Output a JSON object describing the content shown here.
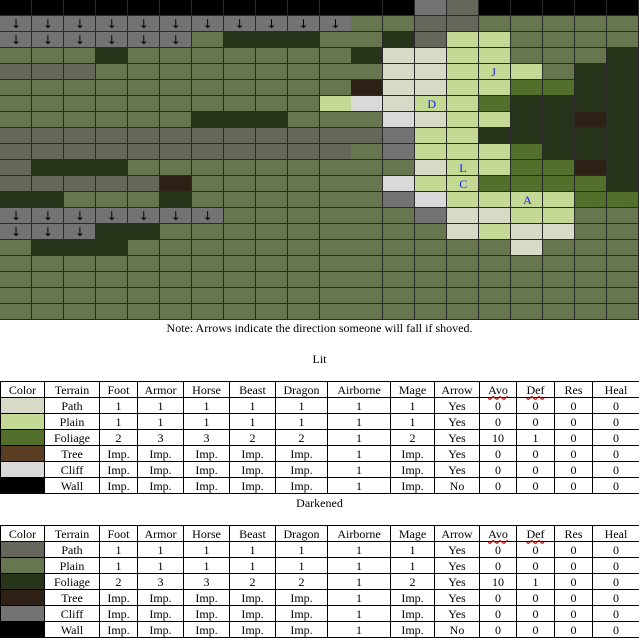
{
  "map": {
    "cols": 20,
    "rows": 20,
    "colors": {
      "W": "#000000",
      "P": "#d8d9c6",
      "L": "#c3d994",
      "F": "#52702c",
      "T": "#5a3e24",
      "C": "#d9d9d9",
      "p": "#66665a",
      "l": "#66774f",
      "f": "#283419",
      "t": "#2e2015",
      "c": "#737373"
    },
    "grid": [
      "WWWWWWWWWWWWWcpWWWWW",
      "cccccccccccllpplllll",
      "cccccclfffllfpLLllll",
      "lllflllllllfPPLLlllf",
      "ppplllllllllPPLLLlff",
      "llllllllllltPPLLFFff",
      "llllllllllLCPLLFffff",
      "llllllffflllCPLLfftf",
      "ppppppppppppcLLfffff",
      "ppppppppppplcLLLFfff",
      "pffflllllllllPLLFFtf",
      "ppppptllllllCLLFFFFf",
      "fflllfllllllcCLLLLFF",
      "cccccccllllllcPPLLll",
      "cccfflllllllllPLPPll",
      "lfffllllllllllllPlll",
      "llllllllllllllllllll",
      "llllllllllllllllllll",
      "llllllllllllllllllll",
      "llllllllllllllllllll"
    ],
    "arrow_glyph": "↓",
    "arrow_cells": [
      [
        0,
        0
      ],
      [
        0,
        1
      ],
      [
        0,
        2
      ],
      [
        0,
        3
      ],
      [
        0,
        4
      ],
      [
        0,
        5
      ],
      [
        0,
        6
      ],
      [
        0,
        7
      ],
      [
        0,
        8
      ],
      [
        0,
        9
      ],
      [
        0,
        10
      ],
      [
        0,
        18
      ],
      [
        0,
        19
      ],
      [
        1,
        0
      ],
      [
        1,
        1
      ],
      [
        1,
        2
      ],
      [
        1,
        3
      ],
      [
        1,
        4
      ],
      [
        1,
        5
      ],
      [
        1,
        6
      ],
      [
        1,
        7
      ],
      [
        1,
        8
      ],
      [
        1,
        9
      ],
      [
        1,
        10
      ],
      [
        2,
        0
      ],
      [
        2,
        1
      ],
      [
        2,
        2
      ],
      [
        2,
        3
      ],
      [
        2,
        4
      ],
      [
        2,
        5
      ],
      [
        13,
        0
      ],
      [
        13,
        1
      ],
      [
        13,
        2
      ],
      [
        13,
        3
      ],
      [
        13,
        4
      ],
      [
        13,
        5
      ],
      [
        13,
        6
      ],
      [
        14,
        0
      ],
      [
        14,
        1
      ],
      [
        14,
        2
      ]
    ],
    "units": [
      {
        "label": "J",
        "row": 4,
        "col": 15
      },
      {
        "label": "D",
        "row": 6,
        "col": 13
      },
      {
        "label": "L",
        "row": 10,
        "col": 14
      },
      {
        "label": "C",
        "row": 11,
        "col": 14
      },
      {
        "label": "A",
        "row": 12,
        "col": 16
      }
    ]
  },
  "note": "Note: Arrows indicate the direction someone will fall if shoved.",
  "lit_title": "Lit",
  "darkened_title": "Darkened",
  "table_headers": [
    "Color",
    "Terrain",
    "Foot",
    "Armor",
    "Horse",
    "Beast",
    "Dragon",
    "Airborne",
    "Mage",
    "Arrow",
    "Avo",
    "Def",
    "Res",
    "Heal"
  ],
  "lit_rows": [
    {
      "color": "#d8d9c6",
      "cells": [
        "Path",
        "1",
        "1",
        "1",
        "1",
        "1",
        "1",
        "1",
        "Yes",
        "0",
        "0",
        "0",
        "0"
      ]
    },
    {
      "color": "#c3d994",
      "cells": [
        "Plain",
        "1",
        "1",
        "1",
        "1",
        "1",
        "1",
        "1",
        "Yes",
        "0",
        "0",
        "0",
        "0"
      ]
    },
    {
      "color": "#52702c",
      "cells": [
        "Foliage",
        "2",
        "3",
        "3",
        "2",
        "2",
        "1",
        "2",
        "Yes",
        "10",
        "1",
        "0",
        "0"
      ]
    },
    {
      "color": "#5a3e24",
      "cells": [
        "Tree",
        "Imp.",
        "Imp.",
        "Imp.",
        "Imp.",
        "Imp.",
        "1",
        "Imp.",
        "Yes",
        "0",
        "0",
        "0",
        "0"
      ]
    },
    {
      "color": "#d9d9d9",
      "cells": [
        "Cliff",
        "Imp.",
        "Imp.",
        "Imp.",
        "Imp.",
        "Imp.",
        "1",
        "Imp.",
        "Yes",
        "0",
        "0",
        "0",
        "0"
      ]
    },
    {
      "color": "#000000",
      "cells": [
        "Wall",
        "Imp.",
        "Imp.",
        "Imp.",
        "Imp.",
        "Imp.",
        "1",
        "Imp.",
        "No",
        "0",
        "0",
        "0",
        "0"
      ]
    }
  ],
  "dark_rows": [
    {
      "color": "#66665a",
      "cells": [
        "Path",
        "1",
        "1",
        "1",
        "1",
        "1",
        "1",
        "1",
        "Yes",
        "0",
        "0",
        "0",
        "0"
      ]
    },
    {
      "color": "#66774f",
      "cells": [
        "Plain",
        "1",
        "1",
        "1",
        "1",
        "1",
        "1",
        "1",
        "Yes",
        "0",
        "0",
        "0",
        "0"
      ]
    },
    {
      "color": "#283419",
      "cells": [
        "Foliage",
        "2",
        "3",
        "3",
        "2",
        "2",
        "1",
        "2",
        "Yes",
        "10",
        "1",
        "0",
        "0"
      ]
    },
    {
      "color": "#2e2015",
      "cells": [
        "Tree",
        "Imp.",
        "Imp.",
        "Imp.",
        "Imp.",
        "Imp.",
        "1",
        "Imp.",
        "Yes",
        "0",
        "0",
        "0",
        "0"
      ]
    },
    {
      "color": "#737373",
      "cells": [
        "Cliff",
        "Imp.",
        "Imp.",
        "Imp.",
        "Imp.",
        "Imp.",
        "1",
        "Imp.",
        "Yes",
        "0",
        "0",
        "0",
        "0"
      ]
    },
    {
      "color": "#000000",
      "cells": [
        "Wall",
        "Imp.",
        "Imp.",
        "Imp.",
        "Imp.",
        "Imp.",
        "1",
        "Imp.",
        "No",
        "0",
        "0",
        "0",
        "0"
      ]
    }
  ]
}
